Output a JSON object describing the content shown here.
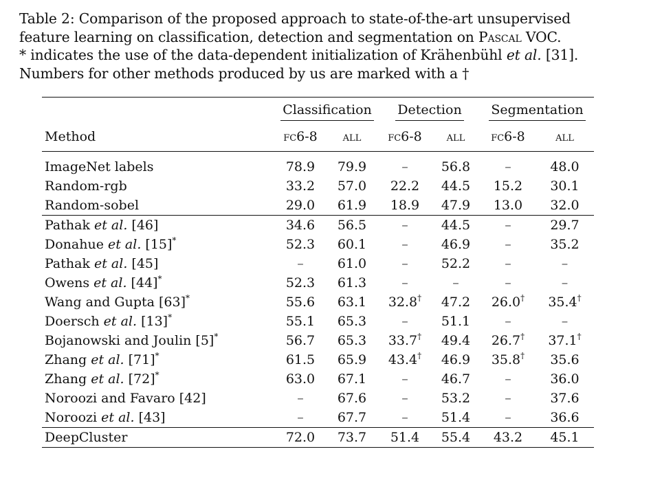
{
  "caption": {
    "line1": "Table 2: Comparison of the proposed approach to state-of-the-art unsupervised",
    "line2_pre": "feature learning on classification, detection and segmentation on ",
    "line2_sc": "Pascal",
    "line2_post": " VOC.",
    "line3_pre": "* indicates the use of the data-dependent initialization of Krähenbühl ",
    "line3_it": "et al.",
    "line3_post": " [31].",
    "line4": "Numbers for other methods produced by us are marked with a †"
  },
  "table": {
    "groups": [
      "Classification",
      "Detection",
      "Segmentation"
    ],
    "method_header": "Method",
    "subheaders": [
      "fc6-8",
      "all",
      "fc6-8",
      "all",
      "fc6-8",
      "all"
    ],
    "sections": [
      [
        {
          "pre": "ImageNet labels",
          "it": "",
          "post": "",
          "star": "",
          "vals": [
            "78.9",
            "79.9",
            "–",
            "56.8",
            "–",
            "48.0"
          ],
          "dag": [
            "",
            "",
            "",
            "",
            "",
            ""
          ]
        },
        {
          "pre": "Random-rgb",
          "it": "",
          "post": "",
          "star": "",
          "vals": [
            "33.2",
            "57.0",
            "22.2",
            "44.5",
            "15.2",
            "30.1"
          ],
          "dag": [
            "",
            "",
            "",
            "",
            "",
            ""
          ]
        },
        {
          "pre": "Random-sobel",
          "it": "",
          "post": "",
          "star": "",
          "vals": [
            "29.0",
            "61.9",
            "18.9",
            "47.9",
            "13.0",
            "32.0"
          ],
          "dag": [
            "",
            "",
            "",
            "",
            "",
            ""
          ]
        }
      ],
      [
        {
          "pre": "Pathak ",
          "it": "et al.",
          "post": " [46]",
          "star": "",
          "vals": [
            "34.6",
            "56.5",
            "–",
            "44.5",
            "–",
            "29.7"
          ],
          "dag": [
            "",
            "",
            "",
            "",
            "",
            ""
          ]
        },
        {
          "pre": "Donahue ",
          "it": "et al.",
          "post": " [15]",
          "star": "*",
          "vals": [
            "52.3",
            "60.1",
            "–",
            "46.9",
            "–",
            "35.2"
          ],
          "dag": [
            "",
            "",
            "",
            "",
            "",
            ""
          ]
        },
        {
          "pre": "Pathak ",
          "it": "et al.",
          "post": " [45]",
          "star": "",
          "vals": [
            "–",
            "61.0",
            "–",
            "52.2",
            "–",
            "–"
          ],
          "dag": [
            "",
            "",
            "",
            "",
            "",
            ""
          ]
        },
        {
          "pre": "Owens ",
          "it": "et al.",
          "post": " [44]",
          "star": "*",
          "vals": [
            "52.3",
            "61.3",
            "–",
            "–",
            "–",
            "–"
          ],
          "dag": [
            "",
            "",
            "",
            "",
            "",
            ""
          ]
        },
        {
          "pre": "Wang and Gupta [63]",
          "it": "",
          "post": "",
          "star": "*",
          "vals": [
            "55.6",
            "63.1",
            "32.8",
            "47.2",
            "26.0",
            "35.4"
          ],
          "dag": [
            "",
            "",
            "†",
            "",
            "†",
            "†"
          ]
        },
        {
          "pre": "Doersch ",
          "it": "et al.",
          "post": " [13]",
          "star": "*",
          "vals": [
            "55.1",
            "65.3",
            "–",
            "51.1",
            "–",
            "–"
          ],
          "dag": [
            "",
            "",
            "",
            "",
            "",
            ""
          ]
        },
        {
          "pre": "Bojanowski and Joulin [5]",
          "it": "",
          "post": "",
          "star": "*",
          "vals": [
            "56.7",
            "65.3",
            "33.7",
            "49.4",
            "26.7",
            "37.1"
          ],
          "dag": [
            "",
            "",
            "†",
            "",
            "†",
            "†"
          ]
        },
        {
          "pre": "Zhang ",
          "it": "et al.",
          "post": " [71]",
          "star": "*",
          "vals": [
            "61.5",
            "65.9",
            "43.4",
            "46.9",
            "35.8",
            "35.6"
          ],
          "dag": [
            "",
            "",
            "†",
            "",
            "†",
            ""
          ]
        },
        {
          "pre": "Zhang ",
          "it": "et al.",
          "post": " [72]",
          "star": "*",
          "vals": [
            "63.0",
            "67.1",
            "–",
            "46.7",
            "–",
            "36.0"
          ],
          "dag": [
            "",
            "",
            "",
            "",
            "",
            ""
          ]
        },
        {
          "pre": "Noroozi and Favaro [42]",
          "it": "",
          "post": "",
          "star": "",
          "vals": [
            "–",
            "67.6",
            "–",
            "53.2",
            "–",
            "37.6"
          ],
          "dag": [
            "",
            "",
            "",
            "",
            "",
            ""
          ]
        },
        {
          "pre": "Noroozi ",
          "it": "et al.",
          "post": " [43]",
          "star": "",
          "vals": [
            "–",
            "67.7",
            "–",
            "51.4",
            "–",
            "36.6"
          ],
          "dag": [
            "",
            "",
            "",
            "",
            "",
            ""
          ]
        }
      ],
      [
        {
          "pre": "DeepCluster",
          "it": "",
          "post": "",
          "star": "",
          "bold": true,
          "vals": [
            "72.0",
            "73.7",
            "51.4",
            "55.4",
            "43.2",
            "45.1"
          ],
          "dag": [
            "",
            "",
            "",
            "",
            "",
            ""
          ]
        }
      ]
    ]
  }
}
